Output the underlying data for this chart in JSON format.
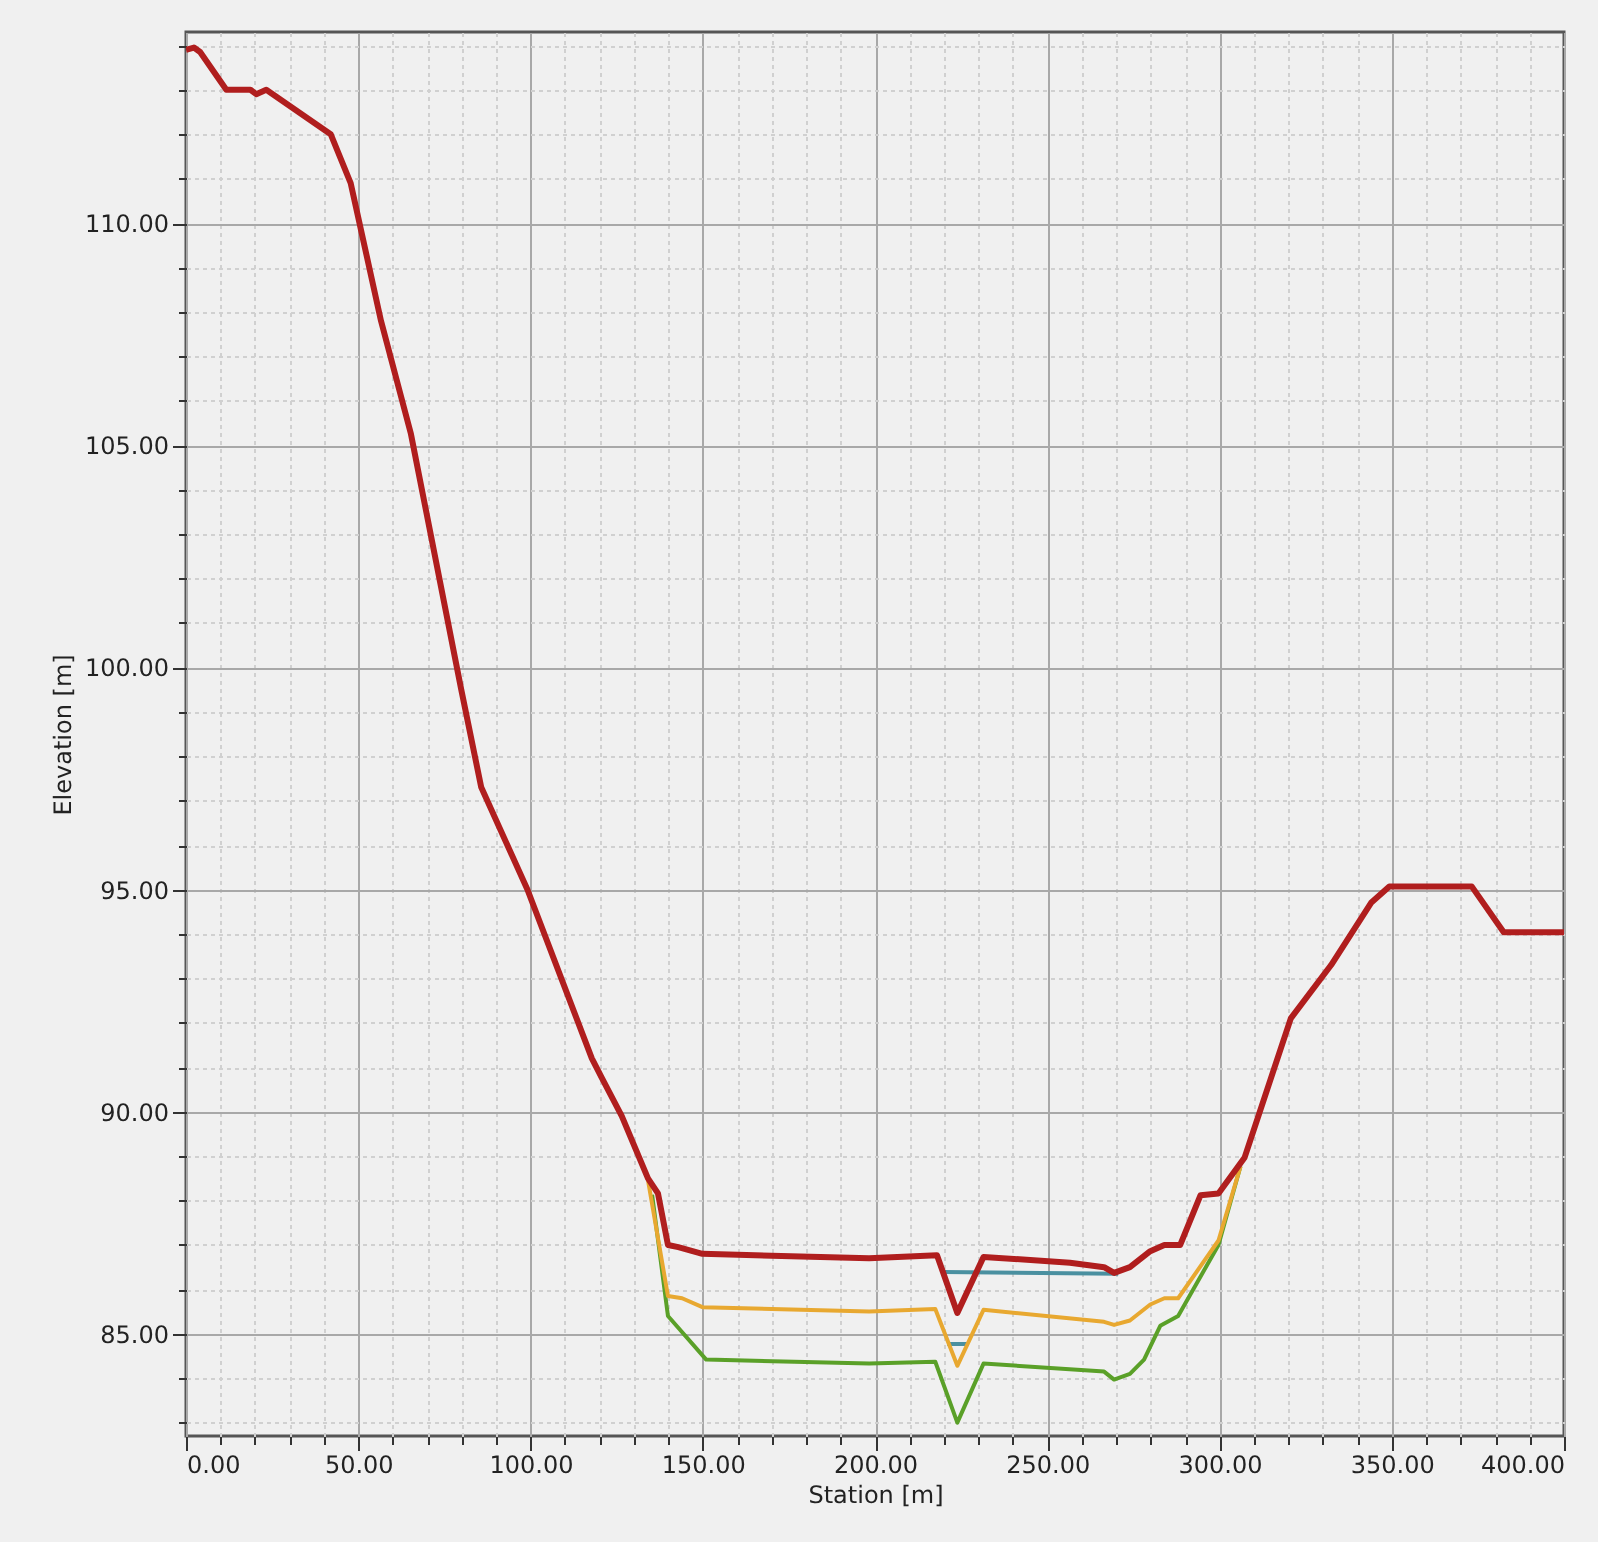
{
  "chart_data": {
    "type": "line",
    "xlabel": "Station [m]",
    "ylabel": "Elevation [m]",
    "xlim": [
      0,
      400
    ],
    "ylim": [
      82.7,
      114.3
    ],
    "xticks": [
      {
        "value": 0,
        "label": "0.00"
      },
      {
        "value": 10,
        "label": null
      },
      {
        "value": 20,
        "label": null
      },
      {
        "value": 30,
        "label": null
      },
      {
        "value": 40,
        "label": null
      },
      {
        "value": 50,
        "label": "50.00"
      },
      {
        "value": 60,
        "label": null
      },
      {
        "value": 70,
        "label": null
      },
      {
        "value": 80,
        "label": null
      },
      {
        "value": 90,
        "label": null
      },
      {
        "value": 100,
        "label": "100.00"
      },
      {
        "value": 110,
        "label": null
      },
      {
        "value": 120,
        "label": null
      },
      {
        "value": 130,
        "label": null
      },
      {
        "value": 140,
        "label": null
      },
      {
        "value": 150,
        "label": "150.00"
      },
      {
        "value": 160,
        "label": null
      },
      {
        "value": 170,
        "label": null
      },
      {
        "value": 180,
        "label": null
      },
      {
        "value": 190,
        "label": null
      },
      {
        "value": 200,
        "label": "200.00"
      },
      {
        "value": 210,
        "label": null
      },
      {
        "value": 220,
        "label": null
      },
      {
        "value": 230,
        "label": null
      },
      {
        "value": 240,
        "label": null
      },
      {
        "value": 250,
        "label": "250.00"
      },
      {
        "value": 260,
        "label": null
      },
      {
        "value": 270,
        "label": null
      },
      {
        "value": 280,
        "label": null
      },
      {
        "value": 290,
        "label": null
      },
      {
        "value": 300,
        "label": "300.00"
      },
      {
        "value": 310,
        "label": null
      },
      {
        "value": 320,
        "label": null
      },
      {
        "value": 330,
        "label": null
      },
      {
        "value": 340,
        "label": null
      },
      {
        "value": 350,
        "label": "350.00"
      },
      {
        "value": 360,
        "label": null
      },
      {
        "value": 370,
        "label": null
      },
      {
        "value": 380,
        "label": null
      },
      {
        "value": 390,
        "label": null
      },
      {
        "value": 400,
        "label": "400.00"
      }
    ],
    "yticks": [
      {
        "value": 83,
        "label": null
      },
      {
        "value": 84,
        "label": null
      },
      {
        "value": 85,
        "label": "85.00"
      },
      {
        "value": 86,
        "label": null
      },
      {
        "value": 87,
        "label": null
      },
      {
        "value": 88,
        "label": null
      },
      {
        "value": 89,
        "label": null
      },
      {
        "value": 90,
        "label": "90.00"
      },
      {
        "value": 91,
        "label": null
      },
      {
        "value": 92,
        "label": null
      },
      {
        "value": 93,
        "label": null
      },
      {
        "value": 94,
        "label": null
      },
      {
        "value": 95,
        "label": "95.00"
      },
      {
        "value": 96,
        "label": null
      },
      {
        "value": 97,
        "label": null
      },
      {
        "value": 98,
        "label": null
      },
      {
        "value": 99,
        "label": null
      },
      {
        "value": 100,
        "label": "100.00"
      },
      {
        "value": 101,
        "label": null
      },
      {
        "value": 102,
        "label": null
      },
      {
        "value": 103,
        "label": null
      },
      {
        "value": 104,
        "label": null
      },
      {
        "value": 105,
        "label": "105.00"
      },
      {
        "value": 106,
        "label": null
      },
      {
        "value": 107,
        "label": null
      },
      {
        "value": 108,
        "label": null
      },
      {
        "value": 109,
        "label": null
      },
      {
        "value": 110,
        "label": "110.00"
      },
      {
        "value": 111,
        "label": null
      },
      {
        "value": 112,
        "label": null
      },
      {
        "value": 113,
        "label": null
      },
      {
        "value": 114,
        "label": null
      }
    ],
    "grid": true,
    "marker": "none",
    "line_style": "solid",
    "series": [
      {
        "color": "#4a90a0",
        "x": [
          219.8,
          270.6,
          null,
          221,
          226.8
        ],
        "values": [
          86.39,
          86.35,
          null,
          84.77,
          84.77
        ]
      },
      {
        "color": "#5aa028",
        "x": [
          135.3,
          139.9,
          151,
          198.3,
          217.5,
          223.9,
          231.5,
          266.5,
          269.4,
          274,
          278.1,
          282.8,
          288,
          299.7,
          306.1
        ],
        "values": [
          88.13,
          85.4,
          84.42,
          84.33,
          84.37,
          83.0,
          84.33,
          84.15,
          83.97,
          84.1,
          84.42,
          85.18,
          85.4,
          87.0,
          88.77
        ]
      },
      {
        "color": "#e8a830",
        "x": [
          134.1,
          139.9,
          144,
          149.9,
          198.3,
          217.5,
          223.9,
          231.5,
          266.5,
          269.4,
          274,
          279.9,
          284,
          288,
          299.7,
          306.1
        ],
        "values": [
          88.46,
          85.85,
          85.8,
          85.6,
          85.5,
          85.56,
          84.28,
          85.54,
          85.27,
          85.2,
          85.3,
          85.66,
          85.8,
          85.8,
          87.1,
          88.77
        ]
      },
      {
        "color": "#b01e1e",
        "x": [
          0,
          2.3,
          4.1,
          11.7,
          18.7,
          20.4,
          23.3,
          42,
          47.8,
          56.6,
          65.3,
          79.9,
          85.7,
          99.1,
          117.8,
          120.7,
          126.5,
          134.1,
          137,
          139.9,
          142.9,
          149.9,
          198.3,
          218,
          223.9,
          231.5,
          256.6,
          266.5,
          269.4,
          274,
          279.9,
          284,
          288.6,
          294.5,
          299.7,
          307.3,
          320.7,
          332.4,
          344,
          349.3,
          363.8,
          373.2,
          382.5,
          400
        ],
        "values": [
          113.9,
          113.95,
          113.85,
          113.0,
          113.0,
          112.9,
          113.0,
          112.0,
          110.9,
          107.8,
          105.25,
          99.5,
          97.3,
          95.0,
          91.2,
          90.76,
          89.9,
          88.5,
          88.16,
          87.0,
          86.95,
          86.8,
          86.7,
          86.77,
          85.47,
          86.73,
          86.6,
          86.5,
          86.37,
          86.5,
          86.86,
          87.0,
          87.0,
          88.12,
          88.16,
          88.97,
          92.1,
          93.3,
          94.7,
          95.07,
          95.07,
          95.07,
          94.04,
          94.04
        ]
      }
    ]
  }
}
